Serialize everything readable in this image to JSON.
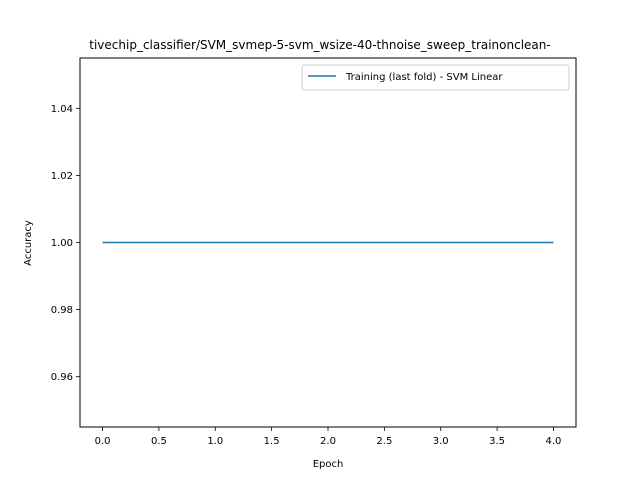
{
  "chart_data": {
    "type": "line",
    "title": "tivechip_classifier/SVM_svmep-5-svm_wsize-40-thnoise_sweep_trainonclean-",
    "xlabel": "Epoch",
    "ylabel": "Accuracy",
    "xlim": [
      -0.2,
      4.2
    ],
    "ylim": [
      0.945,
      1.055
    ],
    "x_ticks": [
      0.0,
      0.5,
      1.0,
      1.5,
      2.0,
      2.5,
      3.0,
      3.5,
      4.0
    ],
    "x_tick_labels": [
      "0.0",
      "0.5",
      "1.0",
      "1.5",
      "2.0",
      "2.5",
      "3.0",
      "3.5",
      "4.0"
    ],
    "y_ticks": [
      0.96,
      0.98,
      1.0,
      1.02,
      1.04
    ],
    "y_tick_labels": [
      "0.96",
      "0.98",
      "1.00",
      "1.02",
      "1.04"
    ],
    "grid": false,
    "legend_position": "top-right",
    "series": [
      {
        "name": "Training (last fold) - SVM Linear",
        "color": "#1f77b4",
        "x": [
          0,
          1,
          2,
          3,
          4
        ],
        "y": [
          1.0,
          1.0,
          1.0,
          1.0,
          1.0
        ]
      }
    ]
  }
}
